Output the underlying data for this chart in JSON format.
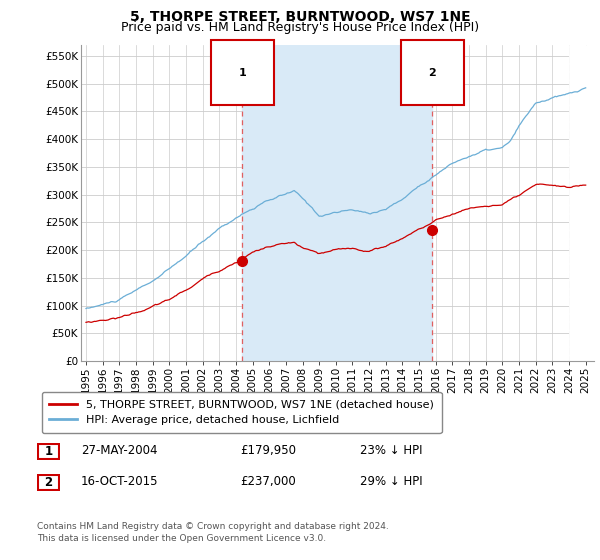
{
  "title": "5, THORPE STREET, BURNTWOOD, WS7 1NE",
  "subtitle": "Price paid vs. HM Land Registry's House Price Index (HPI)",
  "ylim": [
    0,
    570000
  ],
  "xlim_start": 1994.7,
  "xlim_end": 2025.5,
  "hpi_color": "#6baed6",
  "hpi_fill_color": "#d9eaf7",
  "price_color": "#cc0000",
  "marker1_x": 2004.38,
  "marker1_y": 179950,
  "marker2_x": 2015.79,
  "marker2_y": 237000,
  "marker_color": "#cc0000",
  "vline_color": "#e06060",
  "legend_label1": "5, THORPE STREET, BURNTWOOD, WS7 1NE (detached house)",
  "legend_label2": "HPI: Average price, detached house, Lichfield",
  "annotation1_label": "1",
  "annotation2_label": "2",
  "table_row1": [
    "1",
    "27-MAY-2004",
    "£179,950",
    "23% ↓ HPI"
  ],
  "table_row2": [
    "2",
    "16-OCT-2015",
    "£237,000",
    "29% ↓ HPI"
  ],
  "footer": "Contains HM Land Registry data © Crown copyright and database right 2024.\nThis data is licensed under the Open Government Licence v3.0.",
  "bg_color": "#ffffff",
  "grid_color": "#cccccc",
  "title_fontsize": 10,
  "subtitle_fontsize": 9,
  "tick_fontsize": 7.5,
  "legend_fontsize": 8,
  "table_fontsize": 8.5
}
